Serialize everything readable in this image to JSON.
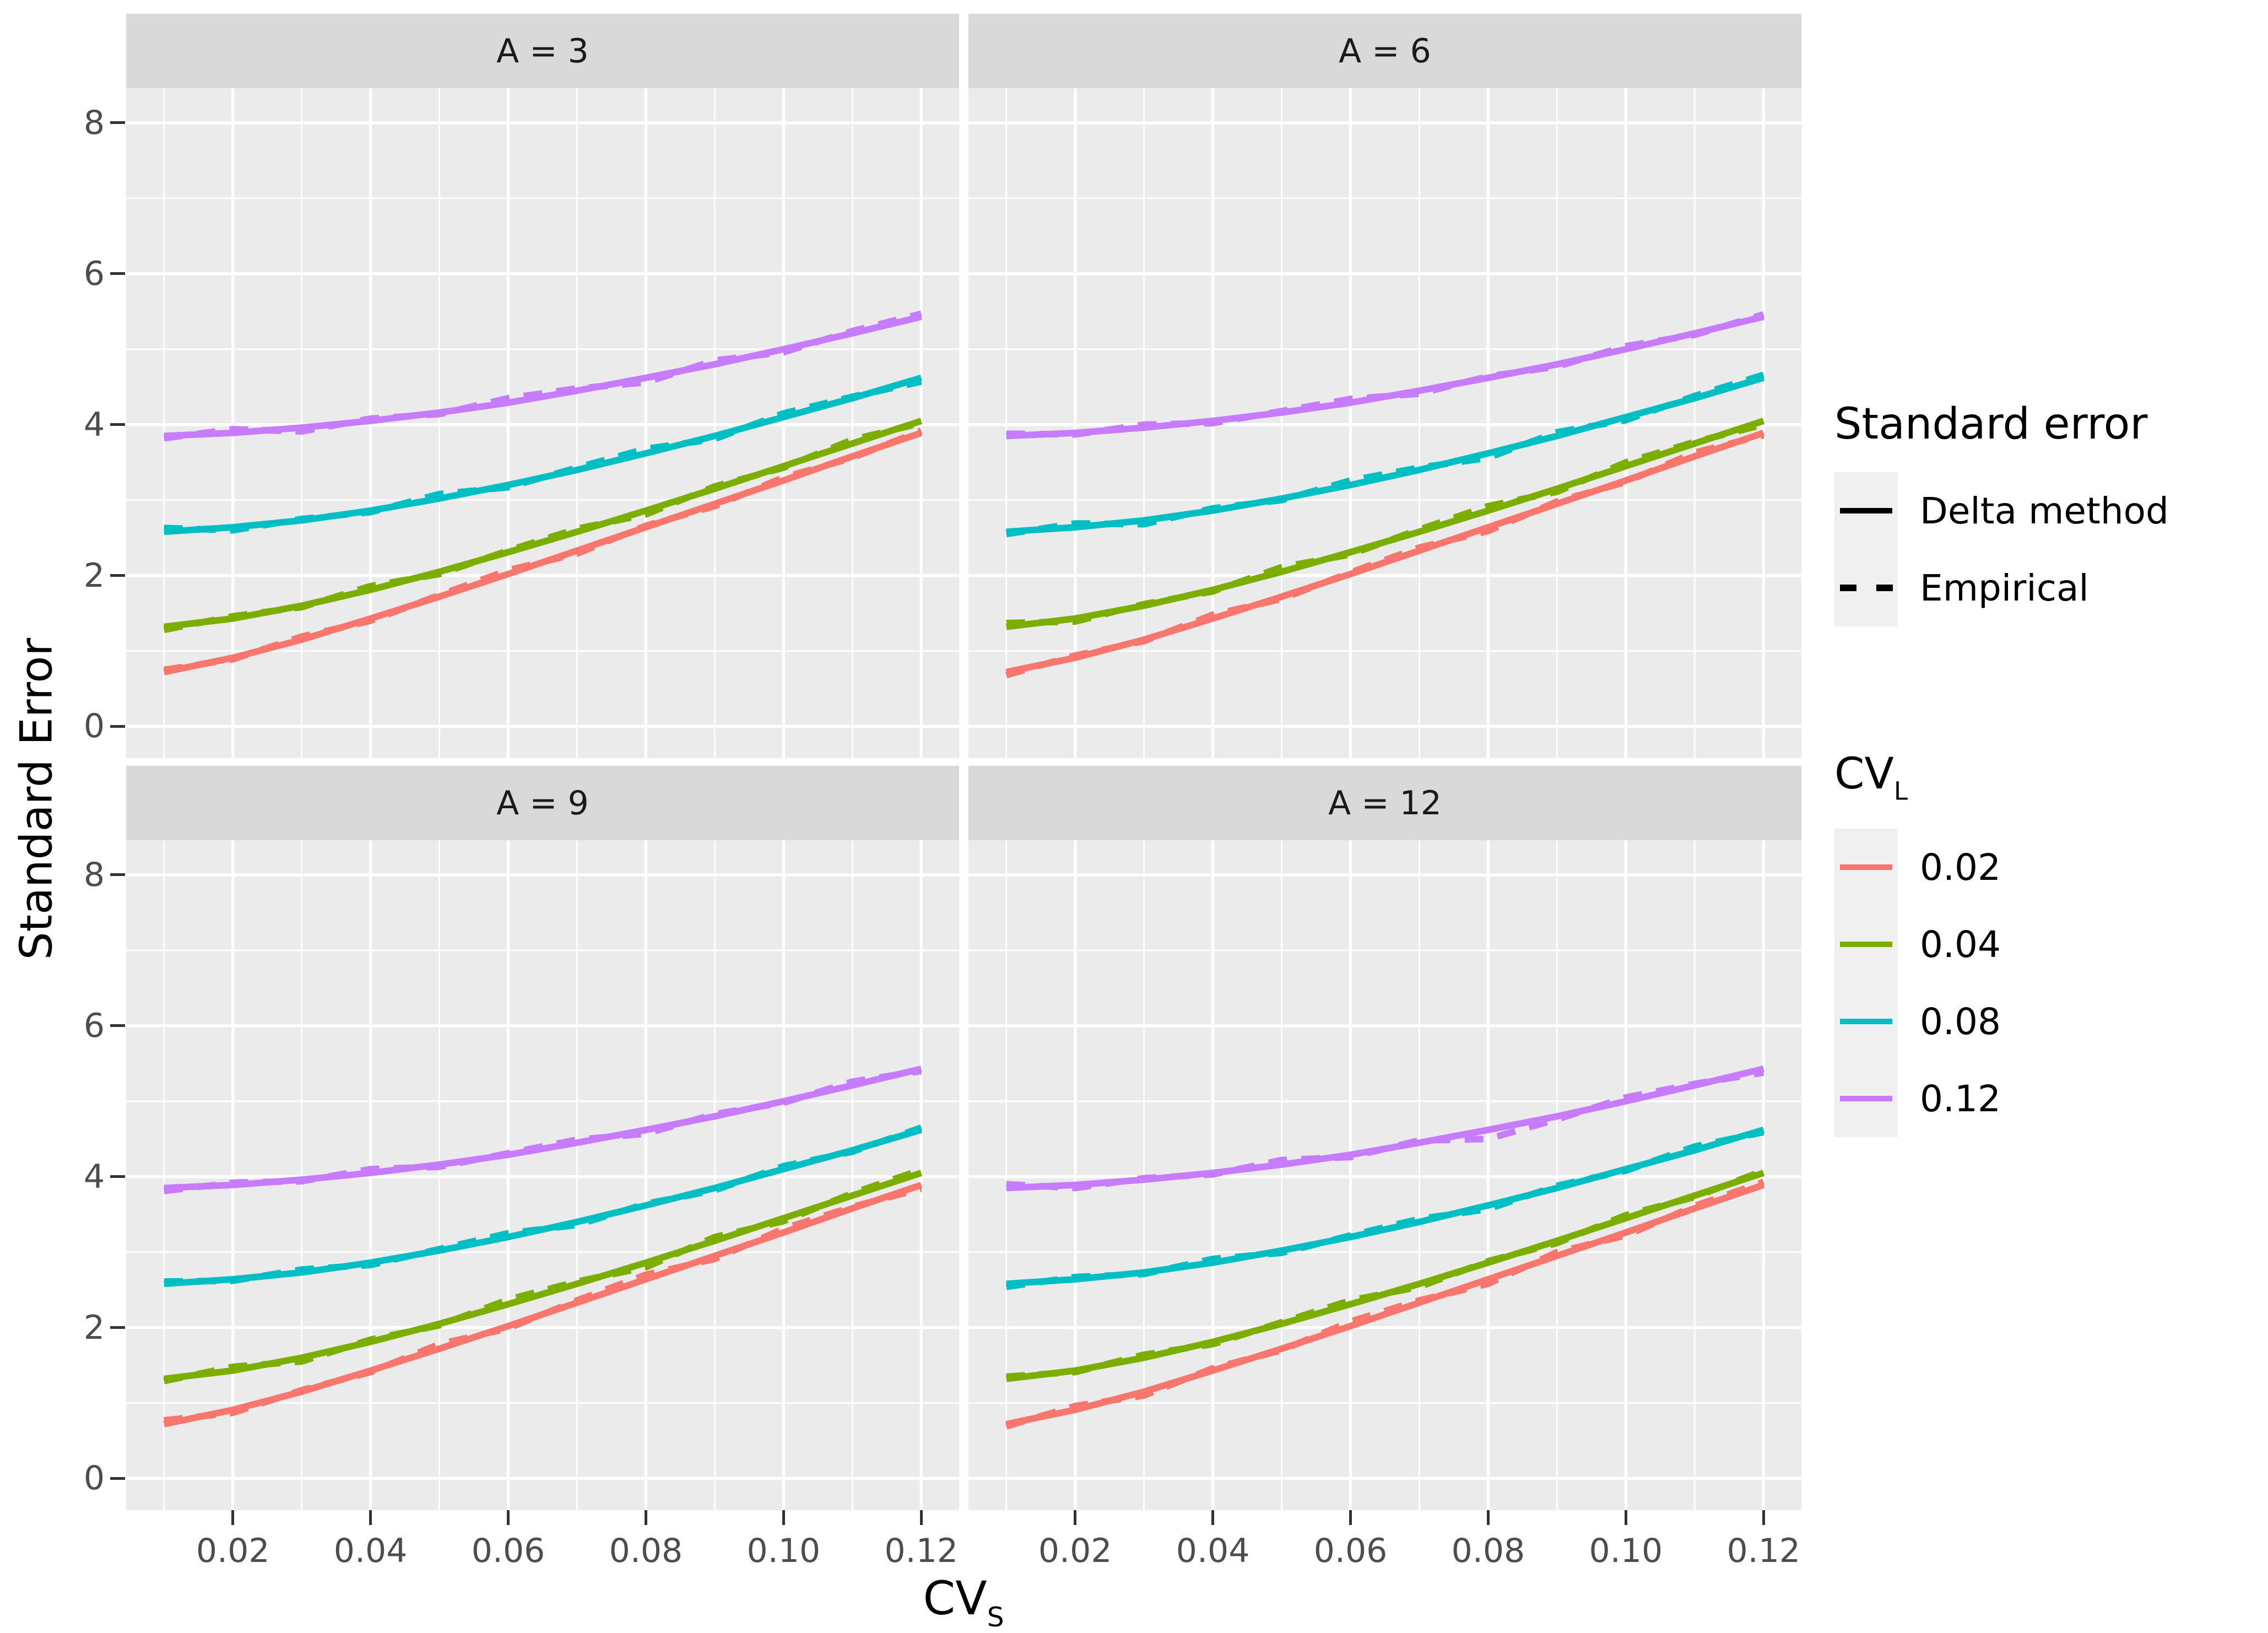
{
  "axes": {
    "x": {
      "title_main": "CV",
      "title_sub": "S",
      "tick_labels": [
        "0.02",
        "0.04",
        "0.06",
        "0.08",
        "0.10",
        "0.12"
      ],
      "tick_values": [
        0.02,
        0.04,
        0.06,
        0.08,
        0.1,
        0.12
      ],
      "minor_values": [
        0.01,
        0.03,
        0.05,
        0.07,
        0.09,
        0.11
      ]
    },
    "y": {
      "title": "Standard Error",
      "tick_labels": [
        "0",
        "2",
        "4",
        "6",
        "8"
      ],
      "tick_values": [
        0,
        2,
        4,
        6,
        8
      ],
      "minor_values": [
        1,
        3,
        5,
        7
      ]
    }
  },
  "legends": {
    "linetype": {
      "title": "Standard error",
      "items": [
        {
          "label": "Delta method",
          "style": "solid"
        },
        {
          "label": "Empirical",
          "style": "dashed"
        }
      ]
    },
    "color": {
      "title_main": "CV",
      "title_sub": "L",
      "items": [
        {
          "label": "0.02",
          "color": "#F8766D"
        },
        {
          "label": "0.04",
          "color": "#7CAE00"
        },
        {
          "label": "0.08",
          "color": "#00BFC4"
        },
        {
          "label": "0.12",
          "color": "#C77CFF"
        }
      ]
    }
  },
  "theme": {
    "panel_bg": "#EBEBEB",
    "strip_bg": "#D9D9D9",
    "grid_color": "#FFFFFF",
    "tick_color": "#333333",
    "tick_label_color": "#4D4D4D",
    "key_bg": "#F0F0F0"
  },
  "chart_data": {
    "type": "line",
    "title": "",
    "xlabel": "CV_S",
    "ylabel": "Standard Error",
    "xlim": [
      0.0045,
      0.1255
    ],
    "ylim": [
      -0.42,
      8.46
    ],
    "grid": true,
    "legend_position": "right",
    "x": [
      0.01,
      0.02,
      0.03,
      0.04,
      0.05,
      0.06,
      0.07,
      0.08,
      0.09,
      0.1,
      0.11,
      0.12
    ],
    "facets": [
      {
        "label": "A = 3",
        "series": [
          {
            "cvl": "0.02",
            "color": "#F8766D",
            "delta": [
              0.72,
              0.91,
              1.15,
              1.43,
              1.72,
              2.02,
              2.33,
              2.64,
              2.95,
              3.26,
              3.58,
              3.89
            ],
            "empirical": [
              0.75,
              0.89,
              1.19,
              1.4,
              1.74,
              2.07,
              2.29,
              2.66,
              2.92,
              3.3,
              3.56,
              3.92
            ]
          },
          {
            "cvl": "0.04",
            "color": "#7CAE00",
            "delta": [
              1.32,
              1.43,
              1.6,
              1.81,
              2.05,
              2.31,
              2.58,
              2.86,
              3.15,
              3.45,
              3.75,
              4.05
            ],
            "empirical": [
              1.28,
              1.46,
              1.58,
              1.86,
              2.02,
              2.33,
              2.62,
              2.81,
              3.18,
              3.43,
              3.8,
              4.02
            ]
          },
          {
            "cvl": "0.08",
            "color": "#00BFC4",
            "delta": [
              2.58,
              2.64,
              2.73,
              2.86,
              3.02,
              3.2,
              3.4,
              3.62,
              3.85,
              4.1,
              4.35,
              4.62
            ],
            "empirical": [
              2.63,
              2.6,
              2.75,
              2.84,
              3.08,
              3.17,
              3.43,
              3.68,
              3.81,
              4.15,
              4.37,
              4.57
            ]
          },
          {
            "cvl": "0.12",
            "color": "#C77CFF",
            "delta": [
              3.85,
              3.89,
              3.96,
              4.05,
              4.16,
              4.29,
              4.45,
              4.62,
              4.8,
              5.0,
              5.21,
              5.43
            ],
            "empirical": [
              3.82,
              3.94,
              3.91,
              4.08,
              4.14,
              4.35,
              4.48,
              4.56,
              4.85,
              4.96,
              5.24,
              5.47
            ]
          }
        ]
      },
      {
        "label": "A = 6",
        "series": [
          {
            "cvl": "0.02",
            "color": "#F8766D",
            "delta": [
              0.72,
              0.91,
              1.15,
              1.43,
              1.72,
              2.02,
              2.33,
              2.64,
              2.95,
              3.26,
              3.58,
              3.89
            ],
            "empirical": [
              0.68,
              0.94,
              1.13,
              1.48,
              1.69,
              2.04,
              2.37,
              2.59,
              2.98,
              3.24,
              3.63,
              3.86
            ]
          },
          {
            "cvl": "0.04",
            "color": "#7CAE00",
            "delta": [
              1.32,
              1.43,
              1.6,
              1.81,
              2.05,
              2.31,
              2.58,
              2.86,
              3.15,
              3.45,
              3.75,
              4.05
            ],
            "empirical": [
              1.37,
              1.39,
              1.62,
              1.79,
              2.11,
              2.28,
              2.61,
              2.92,
              3.11,
              3.5,
              3.77,
              4.0
            ]
          },
          {
            "cvl": "0.08",
            "color": "#00BFC4",
            "delta": [
              2.58,
              2.64,
              2.73,
              2.86,
              3.02,
              3.2,
              3.4,
              3.62,
              3.85,
              4.1,
              4.35,
              4.62
            ],
            "empirical": [
              2.55,
              2.69,
              2.68,
              2.89,
              3.0,
              3.26,
              3.43,
              3.56,
              3.9,
              4.06,
              4.38,
              4.66
            ]
          },
          {
            "cvl": "0.12",
            "color": "#C77CFF",
            "delta": [
              3.85,
              3.89,
              3.96,
              4.05,
              4.16,
              4.29,
              4.45,
              4.62,
              4.8,
              5.0,
              5.21,
              5.43
            ],
            "empirical": [
              3.88,
              3.87,
              4.0,
              4.02,
              4.18,
              4.34,
              4.41,
              4.64,
              4.77,
              5.04,
              5.19,
              5.46
            ]
          }
        ]
      },
      {
        "label": "A = 9",
        "series": [
          {
            "cvl": "0.02",
            "color": "#F8766D",
            "delta": [
              0.72,
              0.91,
              1.15,
              1.43,
              1.72,
              2.02,
              2.33,
              2.64,
              2.95,
              3.26,
              3.58,
              3.89
            ],
            "empirical": [
              0.77,
              0.87,
              1.17,
              1.41,
              1.78,
              1.99,
              2.36,
              2.7,
              2.91,
              3.31,
              3.6,
              3.84
            ]
          },
          {
            "cvl": "0.04",
            "color": "#7CAE00",
            "delta": [
              1.32,
              1.43,
              1.6,
              1.81,
              2.05,
              2.31,
              2.58,
              2.86,
              3.15,
              3.45,
              3.75,
              4.05
            ],
            "empirical": [
              1.29,
              1.48,
              1.55,
              1.84,
              2.03,
              2.37,
              2.61,
              2.8,
              3.2,
              3.41,
              3.78,
              4.09
            ]
          },
          {
            "cvl": "0.08",
            "color": "#00BFC4",
            "delta": [
              2.58,
              2.64,
              2.73,
              2.86,
              3.02,
              3.2,
              3.4,
              3.62,
              3.85,
              4.1,
              4.35,
              4.62
            ],
            "empirical": [
              2.61,
              2.62,
              2.77,
              2.83,
              3.04,
              3.25,
              3.36,
              3.64,
              3.82,
              4.14,
              4.33,
              4.65
            ]
          },
          {
            "cvl": "0.12",
            "color": "#C77CFF",
            "delta": [
              3.85,
              3.89,
              3.96,
              4.05,
              4.16,
              4.29,
              4.45,
              4.62,
              4.8,
              5.0,
              5.21,
              5.43
            ],
            "empirical": [
              3.81,
              3.92,
              3.94,
              4.1,
              4.13,
              4.31,
              4.49,
              4.57,
              4.83,
              4.98,
              5.26,
              5.4
            ]
          }
        ]
      },
      {
        "label": "A = 12",
        "series": [
          {
            "cvl": "0.02",
            "color": "#F8766D",
            "delta": [
              0.72,
              0.91,
              1.15,
              1.43,
              1.72,
              2.02,
              2.33,
              2.64,
              2.95,
              3.26,
              3.58,
              3.89
            ],
            "empirical": [
              0.69,
              0.96,
              1.1,
              1.46,
              1.7,
              2.08,
              2.36,
              2.58,
              3.0,
              3.22,
              3.61,
              3.93
            ]
          },
          {
            "cvl": "0.04",
            "color": "#7CAE00",
            "delta": [
              1.32,
              1.43,
              1.6,
              1.81,
              2.05,
              2.31,
              2.58,
              2.86,
              3.15,
              3.45,
              3.75,
              4.05
            ],
            "empirical": [
              1.35,
              1.41,
              1.64,
              1.78,
              2.07,
              2.36,
              2.54,
              2.88,
              3.12,
              3.49,
              3.73,
              4.08
            ]
          },
          {
            "cvl": "0.08",
            "color": "#00BFC4",
            "delta": [
              2.58,
              2.64,
              2.73,
              2.86,
              3.02,
              3.2,
              3.4,
              3.62,
              3.85,
              4.1,
              4.35,
              4.62
            ],
            "empirical": [
              2.54,
              2.67,
              2.71,
              2.91,
              2.99,
              3.22,
              3.44,
              3.57,
              3.88,
              4.08,
              4.4,
              4.59
            ]
          },
          {
            "cvl": "0.12",
            "color": "#C77CFF",
            "delta": [
              3.85,
              3.89,
              3.96,
              4.05,
              4.16,
              4.29,
              4.45,
              4.62,
              4.8,
              5.0,
              5.21,
              5.43
            ],
            "empirical": [
              3.9,
              3.85,
              3.98,
              4.03,
              4.22,
              4.26,
              4.48,
              4.5,
              4.76,
              5.05,
              5.23,
              5.38
            ]
          }
        ]
      }
    ]
  }
}
